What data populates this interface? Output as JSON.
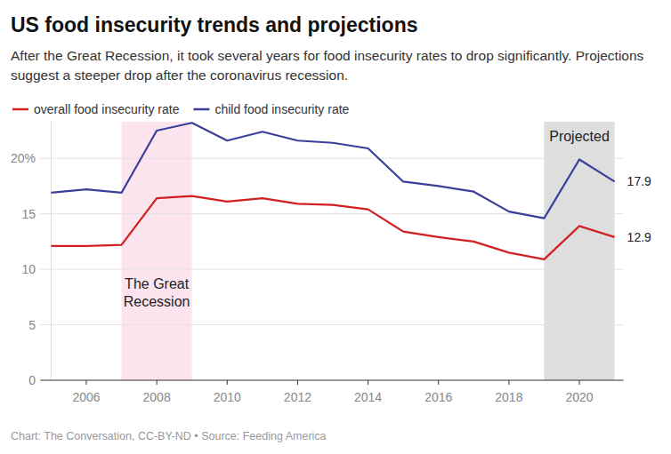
{
  "chart_data": {
    "type": "line",
    "title": "US food insecurity trends and projections",
    "subtitle": "After the Great Recession, it took several years for food insecurity rates to drop significantly. Projections suggest a steeper drop after the coronavirus recession.",
    "source": "Chart: The Conversation, CC-BY-ND • Source: Feeding America",
    "x": [
      2005,
      2006,
      2007,
      2008,
      2009,
      2010,
      2011,
      2012,
      2013,
      2014,
      2015,
      2016,
      2017,
      2018,
      2019,
      2020,
      2021
    ],
    "series": [
      {
        "name": "overall food insecurity rate",
        "color": "#d21f1f",
        "values": [
          12.1,
          12.1,
          12.2,
          16.4,
          16.6,
          16.1,
          16.4,
          15.9,
          15.8,
          15.4,
          13.4,
          12.9,
          12.5,
          11.5,
          10.9,
          13.9,
          12.9
        ],
        "value_labels": [
          null,
          null,
          null,
          null,
          null,
          null,
          null,
          null,
          null,
          null,
          null,
          null,
          null,
          null,
          null,
          null,
          "12.9"
        ]
      },
      {
        "name": "child food insecurity rate",
        "color": "#3a3f9a",
        "values": [
          16.9,
          17.2,
          16.9,
          22.5,
          23.2,
          21.6,
          22.4,
          21.6,
          21.4,
          20.9,
          17.9,
          17.5,
          17.0,
          15.2,
          14.6,
          19.9,
          17.9
        ],
        "value_labels": [
          null,
          null,
          null,
          null,
          null,
          null,
          null,
          null,
          null,
          null,
          null,
          null,
          null,
          null,
          null,
          null,
          "17.9"
        ]
      }
    ],
    "annotations": [
      {
        "text": "The Great Recession",
        "x_start": 2007,
        "x_end": 2009,
        "color": "#fce4ef"
      },
      {
        "text": "Projected",
        "x_start": 2019,
        "x_end": 2021,
        "color": "#dedede"
      }
    ],
    "xlim": [
      2005,
      2021
    ],
    "xticks": [
      2006,
      2008,
      2010,
      2012,
      2014,
      2016,
      2018,
      2020
    ],
    "ylim": [
      0,
      23.3
    ],
    "yticks": [
      0,
      5,
      10,
      15,
      {
        "value": 20,
        "label": "20%"
      }
    ],
    "grid": true,
    "legend": "top-left"
  }
}
